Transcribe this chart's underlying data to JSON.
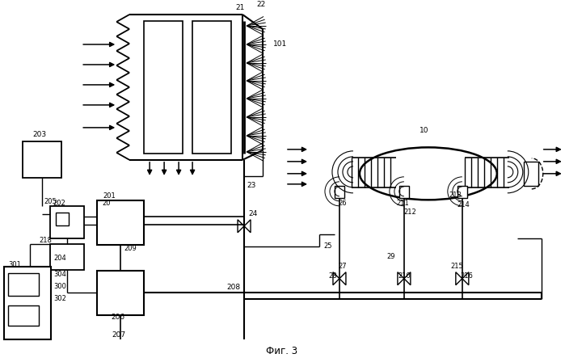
{
  "title": "Фиг. 3",
  "bg_color": "#ffffff",
  "figsize": [
    6.99,
    4.43
  ],
  "dpi": 100
}
